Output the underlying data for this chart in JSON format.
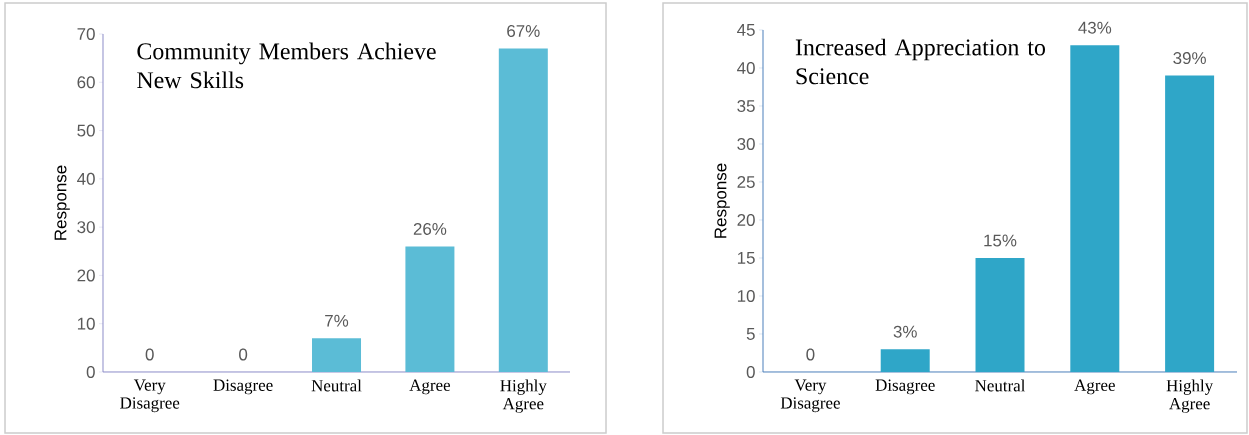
{
  "chart_data": [
    {
      "type": "bar",
      "title": "Community Members Achieve New Skills",
      "ylabel": "Response",
      "categories": [
        "Very Disagree",
        "Disagree",
        "Neutral",
        "Agree",
        "Highly Agree"
      ],
      "values": [
        0,
        0,
        7,
        26,
        67
      ],
      "value_labels": [
        "0",
        "0",
        "7%",
        "26%",
        "67%"
      ],
      "color": "#5bbcd6",
      "ylim": [
        0,
        70
      ],
      "yticks": [
        0,
        10,
        20,
        30,
        40,
        50,
        60,
        70
      ]
    },
    {
      "type": "bar",
      "title": "Increased Appreciation to Science",
      "ylabel": "Response",
      "categories": [
        "Very Disagree",
        "Disagree",
        "Neutral",
        "Agree",
        "Highly Agree"
      ],
      "values": [
        0,
        3,
        15,
        43,
        39
      ],
      "value_labels": [
        "0",
        "3%",
        "15%",
        "43%",
        "39%"
      ],
      "color": "#2fa6c8",
      "ylim": [
        0,
        45
      ],
      "yticks": [
        0,
        5,
        10,
        15,
        20,
        25,
        30,
        35,
        40,
        45
      ]
    }
  ]
}
